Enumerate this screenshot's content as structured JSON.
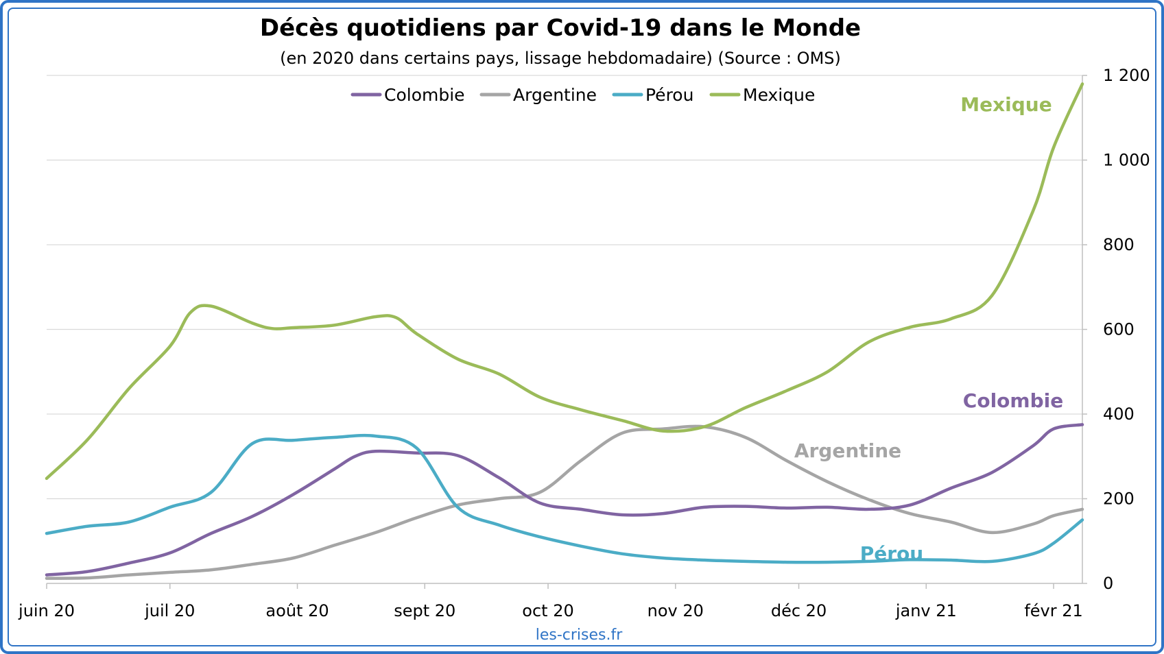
{
  "chart_data": {
    "type": "line",
    "title": "Décès quotidiens par Covid-19 dans le Monde",
    "subtitle": "(en 2020 dans certains pays, lissage hebdomadaire) (Source : OMS)",
    "source": "les-crises.fr",
    "x_ticks": [
      "juin 20",
      "juil 20",
      "août 20",
      "sept 20",
      "oct 20",
      "nov 20",
      "déc 20",
      "janv 21",
      "févr 21"
    ],
    "x_tick_days": [
      0,
      30,
      61,
      92,
      122,
      153,
      183,
      214,
      245
    ],
    "x_end_day": 252,
    "ylim": [
      0,
      1200
    ],
    "y_ticks": [
      0,
      200,
      400,
      600,
      800,
      1000,
      1200
    ],
    "y_tick_labels": [
      "0",
      "200",
      "400",
      "600",
      "800",
      "1 000",
      "1 200"
    ],
    "grid": true,
    "legend_position": "top-center",
    "series": [
      {
        "name": "Colombie",
        "color": "#8064a2",
        "end_label": "Colombie",
        "x": [
          0,
          10,
          20,
          30,
          40,
          50,
          60,
          70,
          75,
          80,
          90,
          100,
          110,
          120,
          130,
          140,
          150,
          160,
          170,
          180,
          190,
          200,
          210,
          220,
          230,
          240,
          245,
          252
        ],
        "y": [
          20,
          28,
          48,
          72,
          118,
          158,
          210,
          270,
          300,
          312,
          308,
          302,
          250,
          190,
          175,
          162,
          165,
          180,
          182,
          178,
          180,
          175,
          185,
          225,
          262,
          325,
          365,
          375
        ]
      },
      {
        "name": "Argentine",
        "color": "#a5a5a5",
        "end_label": "Argentine",
        "x": [
          0,
          10,
          20,
          30,
          40,
          50,
          60,
          70,
          80,
          90,
          100,
          110,
          120,
          130,
          140,
          150,
          160,
          170,
          180,
          190,
          200,
          210,
          220,
          230,
          240,
          245,
          252
        ],
        "y": [
          12,
          13,
          20,
          26,
          32,
          45,
          60,
          90,
          120,
          155,
          185,
          200,
          215,
          290,
          355,
          365,
          370,
          345,
          290,
          240,
          198,
          165,
          145,
          120,
          140,
          160,
          175
        ]
      },
      {
        "name": "Pérou",
        "color": "#4bacc6",
        "end_label": "Pérou",
        "x": [
          0,
          10,
          20,
          30,
          40,
          50,
          60,
          70,
          80,
          90,
          100,
          110,
          120,
          130,
          140,
          150,
          160,
          170,
          180,
          190,
          200,
          210,
          220,
          230,
          240,
          245,
          252
        ],
        "y": [
          118,
          135,
          145,
          180,
          215,
          330,
          338,
          345,
          348,
          320,
          180,
          138,
          110,
          88,
          70,
          60,
          55,
          52,
          50,
          50,
          52,
          56,
          55,
          52,
          70,
          95,
          150
        ]
      },
      {
        "name": "Mexique",
        "color": "#9bbb59",
        "end_label": "Mexique",
        "x": [
          0,
          10,
          20,
          30,
          35,
          40,
          50,
          55,
          60,
          70,
          80,
          85,
          90,
          100,
          110,
          120,
          130,
          140,
          150,
          160,
          170,
          180,
          190,
          200,
          210,
          220,
          230,
          240,
          245,
          252
        ],
        "y": [
          248,
          340,
          460,
          560,
          640,
          655,
          615,
          602,
          604,
          610,
          630,
          628,
          590,
          530,
          495,
          440,
          410,
          385,
          360,
          370,
          415,
          455,
          500,
          570,
          605,
          625,
          680,
          880,
          1030,
          1180
        ]
      }
    ]
  }
}
